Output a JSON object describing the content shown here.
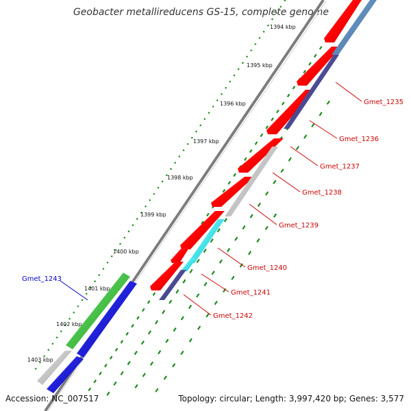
{
  "title": "Geobacter metallireducens GS-15, complete genome",
  "footer": {
    "accession": "Accession: NC_007517",
    "topology": "Topology: circular; Length: 3,997,420 bp; Genes: 3,577"
  },
  "ticks": [
    "1394 kbp",
    "1395 kbp",
    "1396 kbp",
    "1397 kbp",
    "1398 kbp",
    "1399 kbp",
    "1400 kbp",
    "1401 kbp",
    "1402 kbp",
    "1403 kbp"
  ],
  "colors": {
    "backbone": "#9a9a9a",
    "dots": "#1a8a1a",
    "red_gene_label": "#cc0000",
    "blue_gene_label": "#0000cc"
  },
  "genes": [
    {
      "label": "Gmet_1235",
      "color": "#cc0000"
    },
    {
      "label": "Gmet_1236",
      "color": "#cc0000"
    },
    {
      "label": "Gmet_1237",
      "color": "#cc0000"
    },
    {
      "label": "Gmet_1238",
      "color": "#cc0000"
    },
    {
      "label": "Gmet_1239",
      "color": "#cc0000"
    },
    {
      "label": "Gmet_1240",
      "color": "#cc0000"
    },
    {
      "label": "Gmet_1241",
      "color": "#cc0000"
    },
    {
      "label": "Gmet_1242",
      "color": "#cc0000"
    },
    {
      "label": "Gmet_1243",
      "color": "#0000cc"
    }
  ]
}
